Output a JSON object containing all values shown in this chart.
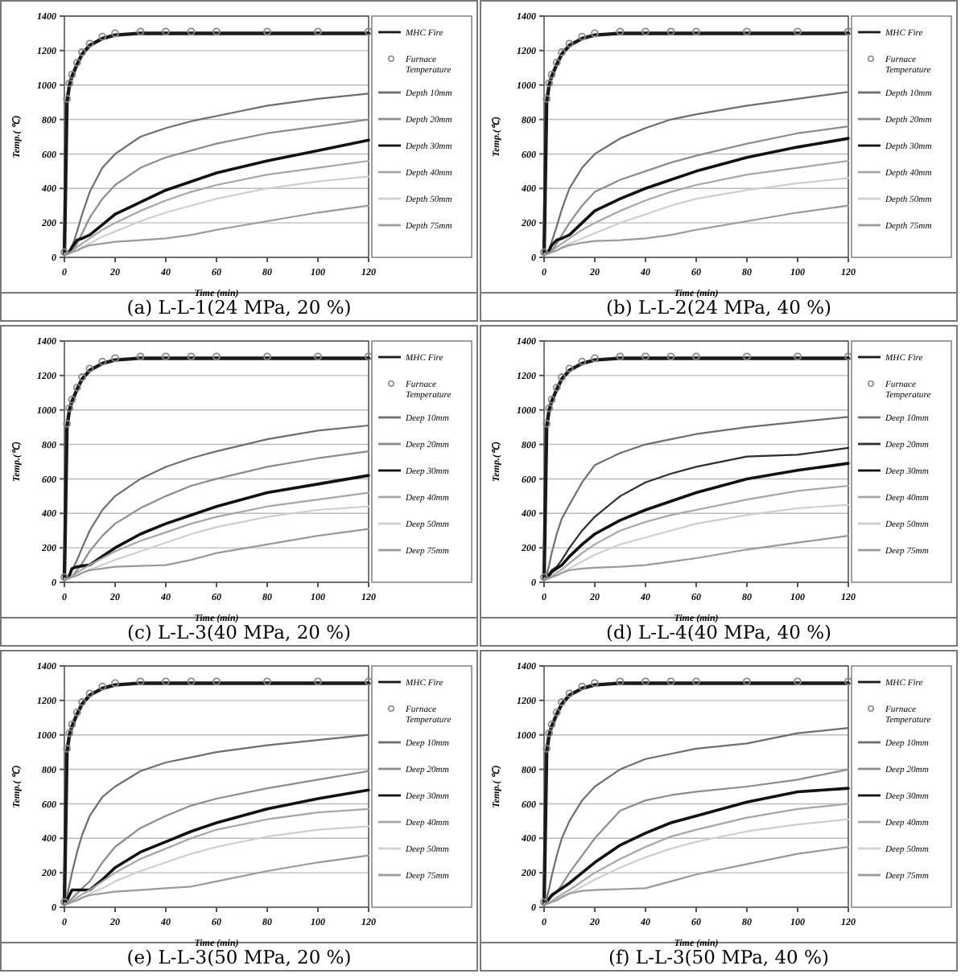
{
  "chart_data": [
    {
      "type": "line",
      "title": "(a) L-L-1(24 MPa, 20 %)",
      "xlabel": "Time (min)",
      "ylabel": "Temp.( ℃)",
      "x": [
        0,
        1,
        2,
        3,
        5,
        7,
        10,
        15,
        20,
        30,
        40,
        50,
        60,
        80,
        100,
        120
      ],
      "xlim": [
        0,
        120
      ],
      "xticks": [
        0,
        20,
        40,
        60,
        80,
        100,
        120
      ],
      "ylim": [
        0,
        1400
      ],
      "yticks": [
        0,
        200,
        400,
        600,
        800,
        1000,
        1200,
        1400
      ],
      "grid": "y",
      "legend": "right",
      "series": [
        {
          "name": "MHC Fire",
          "color": "#1a1a1a",
          "values": [
            20,
            900,
            1000,
            1050,
            1120,
            1180,
            1230,
            1270,
            1290,
            1300,
            1300,
            1300,
            1300,
            1300,
            1300,
            1300
          ]
        },
        {
          "name": "Furnace Temperature",
          "type": "scatter",
          "color": "#8a8a8a",
          "values": [
            30,
            920,
            1010,
            1060,
            1130,
            1190,
            1240,
            1280,
            1300,
            1310,
            1310,
            1310,
            1310,
            1310,
            1310,
            1310
          ]
        },
        {
          "name": "Depth 10mm",
          "color": "#6e6e6e",
          "values": [
            20,
            25,
            40,
            60,
            150,
            250,
            380,
            520,
            600,
            700,
            750,
            790,
            820,
            880,
            920,
            950
          ]
        },
        {
          "name": "Depth 20mm",
          "color": "#8c8c8c",
          "values": [
            20,
            22,
            25,
            35,
            80,
            140,
            230,
            340,
            420,
            520,
            580,
            620,
            660,
            720,
            760,
            800
          ]
        },
        {
          "name": "Depth 30mm",
          "color": "#111111",
          "values": [
            20,
            22,
            30,
            60,
            100,
            110,
            130,
            190,
            250,
            320,
            390,
            440,
            490,
            560,
            620,
            680
          ]
        },
        {
          "name": "Depth 40mm",
          "color": "#a6a6a6",
          "values": [
            20,
            22,
            25,
            35,
            60,
            80,
            110,
            160,
            200,
            270,
            330,
            380,
            420,
            480,
            520,
            560
          ]
        },
        {
          "name": "Depth 50mm",
          "color": "#cfcfcf",
          "values": [
            20,
            21,
            23,
            30,
            40,
            60,
            80,
            120,
            150,
            210,
            260,
            300,
            340,
            400,
            440,
            470
          ]
        },
        {
          "name": "Depth 75mm",
          "color": "#9a9a9a",
          "values": [
            20,
            21,
            23,
            30,
            40,
            55,
            70,
            80,
            90,
            100,
            110,
            130,
            160,
            210,
            260,
            300
          ]
        }
      ]
    },
    {
      "type": "line",
      "title": "(b) L-L-2(24 MPa, 40 %)",
      "xlabel": "Time (min)",
      "ylabel": "Temp.(℃)",
      "x": [
        0,
        1,
        2,
        3,
        5,
        7,
        10,
        15,
        20,
        30,
        40,
        50,
        60,
        80,
        100,
        120
      ],
      "xlim": [
        0,
        120
      ],
      "xticks": [
        0,
        20,
        40,
        60,
        80,
        100,
        120
      ],
      "ylim": [
        0,
        1400
      ],
      "yticks": [
        0,
        200,
        400,
        600,
        800,
        1000,
        1200,
        1400
      ],
      "grid": "y",
      "legend": "right",
      "series": [
        {
          "name": "MHC Fire",
          "color": "#1a1a1a",
          "values": [
            20,
            900,
            1000,
            1050,
            1120,
            1180,
            1230,
            1270,
            1290,
            1300,
            1300,
            1300,
            1300,
            1300,
            1300,
            1300
          ]
        },
        {
          "name": "Furnace Temperature",
          "type": "scatter",
          "color": "#8a8a8a",
          "values": [
            30,
            920,
            1010,
            1060,
            1130,
            1190,
            1240,
            1280,
            1300,
            1310,
            1310,
            1310,
            1310,
            1310,
            1310,
            1310
          ]
        },
        {
          "name": "Depth 10mm",
          "color": "#6e6e6e",
          "values": [
            20,
            30,
            50,
            90,
            180,
            280,
            400,
            520,
            600,
            690,
            750,
            800,
            830,
            880,
            920,
            960
          ]
        },
        {
          "name": "Depth 20mm",
          "color": "#8c8c8c",
          "values": [
            20,
            22,
            28,
            40,
            80,
            130,
            200,
            300,
            380,
            450,
            500,
            550,
            590,
            660,
            720,
            760
          ]
        },
        {
          "name": "Depth 30mm",
          "color": "#111111",
          "values": [
            20,
            25,
            40,
            70,
            100,
            110,
            130,
            200,
            270,
            340,
            400,
            450,
            500,
            580,
            640,
            690
          ]
        },
        {
          "name": "Depth 40mm",
          "color": "#a6a6a6",
          "values": [
            20,
            22,
            25,
            35,
            60,
            80,
            110,
            160,
            200,
            270,
            330,
            380,
            420,
            480,
            520,
            560
          ]
        },
        {
          "name": "Depth 50mm",
          "color": "#cfcfcf",
          "values": [
            20,
            21,
            23,
            30,
            40,
            60,
            80,
            110,
            140,
            200,
            250,
            300,
            340,
            390,
            430,
            460
          ]
        },
        {
          "name": "Depth 75mm",
          "color": "#9a9a9a",
          "values": [
            20,
            21,
            23,
            30,
            40,
            55,
            70,
            85,
            95,
            100,
            110,
            130,
            160,
            210,
            260,
            300
          ]
        }
      ]
    },
    {
      "type": "line",
      "title": "(c) L-L-3(40 MPa, 20 %)",
      "xlabel": "Time (min)",
      "ylabel": "Temp.(℃)",
      "x": [
        0,
        1,
        2,
        3,
        5,
        7,
        10,
        15,
        20,
        30,
        40,
        50,
        60,
        80,
        100,
        120
      ],
      "xlim": [
        0,
        120
      ],
      "xticks": [
        0,
        20,
        40,
        60,
        80,
        100,
        120
      ],
      "ylim": [
        0,
        1400
      ],
      "yticks": [
        0,
        200,
        400,
        600,
        800,
        1000,
        1200,
        1400
      ],
      "grid": "y",
      "legend": "right",
      "series": [
        {
          "name": "MHC Fire",
          "color": "#1a1a1a",
          "values": [
            20,
            900,
            1000,
            1050,
            1120,
            1180,
            1230,
            1270,
            1290,
            1300,
            1300,
            1300,
            1300,
            1300,
            1300,
            1300
          ]
        },
        {
          "name": "Furnace Temperature",
          "type": "scatter",
          "color": "#8a8a8a",
          "values": [
            30,
            920,
            1010,
            1060,
            1130,
            1190,
            1240,
            1280,
            1300,
            1310,
            1310,
            1310,
            1310,
            1310,
            1310,
            1310
          ]
        },
        {
          "name": "Deep 10mm",
          "color": "#6e6e6e",
          "values": [
            20,
            25,
            40,
            70,
            130,
            200,
            300,
            420,
            500,
            600,
            670,
            720,
            760,
            830,
            880,
            910
          ]
        },
        {
          "name": "Deep 20mm",
          "color": "#8c8c8c",
          "values": [
            20,
            22,
            25,
            35,
            70,
            110,
            180,
            270,
            340,
            430,
            500,
            560,
            600,
            670,
            720,
            760
          ]
        },
        {
          "name": "Deep 30mm",
          "color": "#111111",
          "values": [
            20,
            25,
            40,
            80,
            90,
            95,
            100,
            150,
            200,
            280,
            340,
            390,
            440,
            520,
            570,
            620
          ]
        },
        {
          "name": "Deep 40mm",
          "color": "#a6a6a6",
          "values": [
            20,
            22,
            25,
            35,
            55,
            75,
            100,
            140,
            180,
            240,
            290,
            340,
            380,
            440,
            480,
            520
          ]
        },
        {
          "name": "Deep 50mm",
          "color": "#cfcfcf",
          "values": [
            20,
            21,
            23,
            30,
            40,
            55,
            75,
            100,
            130,
            180,
            230,
            280,
            320,
            380,
            420,
            440
          ]
        },
        {
          "name": "Deep 75mm",
          "color": "#9a9a9a",
          "values": [
            20,
            21,
            23,
            30,
            40,
            55,
            70,
            80,
            90,
            95,
            100,
            130,
            170,
            220,
            270,
            310
          ]
        }
      ]
    },
    {
      "type": "line",
      "title": "(d) L-L-4(40 MPa, 40 %)",
      "xlabel": "Time (min)",
      "ylabel": "Temp.(℃)",
      "x": [
        0,
        1,
        2,
        3,
        5,
        7,
        10,
        15,
        20,
        30,
        40,
        50,
        60,
        80,
        100,
        120
      ],
      "xlim": [
        0,
        120
      ],
      "xticks": [
        0,
        20,
        40,
        60,
        80,
        100,
        120
      ],
      "ylim": [
        0,
        1400
      ],
      "yticks": [
        0,
        200,
        400,
        600,
        800,
        1000,
        1200,
        1400
      ],
      "grid": "y",
      "legend": "right",
      "series": [
        {
          "name": "MHC Fire",
          "color": "#1a1a1a",
          "values": [
            20,
            900,
            1000,
            1050,
            1120,
            1180,
            1230,
            1270,
            1290,
            1300,
            1300,
            1300,
            1300,
            1300,
            1300,
            1300
          ]
        },
        {
          "name": "Furnace Temperature",
          "type": "scatter",
          "color": "#8a8a8a",
          "values": [
            30,
            920,
            1010,
            1060,
            1130,
            1190,
            1240,
            1280,
            1300,
            1310,
            1310,
            1310,
            1310,
            1310,
            1310,
            1310
          ]
        },
        {
          "name": "Deep 10mm",
          "color": "#6e6e6e",
          "values": [
            20,
            40,
            100,
            170,
            280,
            370,
            450,
            580,
            680,
            750,
            800,
            830,
            860,
            900,
            930,
            960
          ]
        },
        {
          "name": "Deep 20mm",
          "color": "#2e2e2e",
          "values": [
            20,
            30,
            50,
            70,
            90,
            130,
            200,
            300,
            380,
            500,
            580,
            630,
            670,
            730,
            740,
            780
          ]
        },
        {
          "name": "Deep 30mm",
          "color": "#111111",
          "values": [
            20,
            25,
            40,
            60,
            80,
            100,
            150,
            220,
            280,
            360,
            420,
            470,
            520,
            600,
            650,
            690
          ]
        },
        {
          "name": "Deep 40mm",
          "color": "#a6a6a6",
          "values": [
            20,
            22,
            25,
            35,
            55,
            75,
            110,
            170,
            220,
            300,
            350,
            390,
            420,
            480,
            530,
            560
          ]
        },
        {
          "name": "Deep 50mm",
          "color": "#cfcfcf",
          "values": [
            20,
            21,
            23,
            30,
            40,
            55,
            80,
            120,
            160,
            220,
            260,
            300,
            340,
            390,
            430,
            450
          ]
        },
        {
          "name": "Deep 75mm",
          "color": "#9a9a9a",
          "values": [
            20,
            21,
            23,
            30,
            40,
            55,
            70,
            80,
            85,
            90,
            100,
            120,
            140,
            190,
            230,
            270
          ]
        }
      ]
    },
    {
      "type": "line",
      "title": "(e) L-L-3(50 MPa, 20 %)",
      "xlabel": "Time (min)",
      "ylabel": "Temp.( ℃)",
      "x": [
        0,
        1,
        2,
        3,
        5,
        7,
        10,
        15,
        20,
        30,
        40,
        50,
        60,
        80,
        100,
        120
      ],
      "xlim": [
        0,
        120
      ],
      "xticks": [
        0,
        20,
        40,
        60,
        80,
        100,
        120
      ],
      "ylim": [
        0,
        1400
      ],
      "yticks": [
        0,
        200,
        400,
        600,
        800,
        1000,
        1200,
        1400
      ],
      "grid": "y",
      "legend": "right",
      "series": [
        {
          "name": "MHC Fire",
          "color": "#1a1a1a",
          "values": [
            20,
            900,
            1000,
            1050,
            1120,
            1180,
            1230,
            1270,
            1290,
            1300,
            1300,
            1300,
            1300,
            1300,
            1300,
            1300
          ]
        },
        {
          "name": "Furnace Temperature",
          "type": "scatter",
          "color": "#8a8a8a",
          "values": [
            30,
            920,
            1010,
            1060,
            1130,
            1190,
            1240,
            1280,
            1300,
            1310,
            1310,
            1310,
            1310,
            1310,
            1310,
            1310
          ]
        },
        {
          "name": "Deep 10mm",
          "color": "#6e6e6e",
          "values": [
            20,
            60,
            130,
            200,
            320,
            420,
            530,
            640,
            700,
            790,
            840,
            870,
            900,
            940,
            970,
            1000
          ]
        },
        {
          "name": "Deep 20mm",
          "color": "#8c8c8c",
          "values": [
            20,
            25,
            35,
            50,
            80,
            110,
            150,
            260,
            350,
            460,
            530,
            590,
            630,
            690,
            740,
            790
          ]
        },
        {
          "name": "Deep 30mm",
          "color": "#111111",
          "values": [
            20,
            40,
            70,
            100,
            100,
            100,
            100,
            160,
            230,
            320,
            380,
            440,
            490,
            570,
            630,
            680
          ]
        },
        {
          "name": "Deep 40mm",
          "color": "#a6a6a6",
          "values": [
            20,
            22,
            25,
            35,
            55,
            75,
            100,
            150,
            200,
            280,
            340,
            400,
            450,
            510,
            550,
            570
          ]
        },
        {
          "name": "Deep 50mm",
          "color": "#cfcfcf",
          "values": [
            20,
            21,
            23,
            30,
            40,
            55,
            80,
            110,
            150,
            210,
            260,
            310,
            350,
            410,
            450,
            470
          ]
        },
        {
          "name": "Deep 75mm",
          "color": "#9a9a9a",
          "values": [
            20,
            21,
            23,
            30,
            40,
            55,
            70,
            80,
            90,
            100,
            110,
            120,
            150,
            210,
            260,
            300
          ]
        }
      ]
    },
    {
      "type": "line",
      "title": "(f) L-L-3(50 MPa, 40 %)",
      "xlabel": "Time (min)",
      "ylabel": "Temp.( ℃)",
      "x": [
        0,
        1,
        2,
        3,
        5,
        7,
        10,
        15,
        20,
        30,
        40,
        50,
        60,
        80,
        100,
        120
      ],
      "xlim": [
        0,
        120
      ],
      "xticks": [
        0,
        20,
        40,
        60,
        80,
        100,
        120
      ],
      "ylim": [
        0,
        1400
      ],
      "yticks": [
        0,
        200,
        400,
        600,
        800,
        1000,
        1200,
        1400
      ],
      "grid": "y",
      "legend": "right",
      "series": [
        {
          "name": "MHC Fire",
          "color": "#1a1a1a",
          "values": [
            20,
            900,
            1000,
            1050,
            1120,
            1180,
            1230,
            1270,
            1290,
            1300,
            1300,
            1300,
            1300,
            1300,
            1300,
            1300
          ]
        },
        {
          "name": "Furnace Temperature",
          "type": "scatter",
          "color": "#8a8a8a",
          "values": [
            30,
            920,
            1010,
            1060,
            1130,
            1190,
            1240,
            1280,
            1300,
            1310,
            1310,
            1310,
            1310,
            1310,
            1310,
            1310
          ]
        },
        {
          "name": "Deep 10mm",
          "color": "#6e6e6e",
          "values": [
            20,
            50,
            110,
            180,
            300,
            400,
            500,
            620,
            700,
            800,
            860,
            890,
            920,
            950,
            1010,
            1040
          ]
        },
        {
          "name": "Deep 20mm",
          "color": "#8c8c8c",
          "values": [
            20,
            30,
            45,
            60,
            90,
            130,
            200,
            300,
            400,
            560,
            620,
            650,
            670,
            700,
            740,
            800
          ]
        },
        {
          "name": "Deep 30mm",
          "color": "#111111",
          "values": [
            20,
            30,
            50,
            70,
            90,
            110,
            140,
            200,
            260,
            360,
            430,
            490,
            530,
            610,
            670,
            690
          ]
        },
        {
          "name": "Deep 40mm",
          "color": "#a6a6a6",
          "values": [
            20,
            22,
            25,
            35,
            55,
            75,
            100,
            150,
            200,
            280,
            350,
            410,
            450,
            520,
            570,
            600
          ]
        },
        {
          "name": "Deep 50mm",
          "color": "#cfcfcf",
          "values": [
            20,
            21,
            23,
            30,
            40,
            55,
            80,
            120,
            160,
            230,
            290,
            340,
            380,
            440,
            480,
            510
          ]
        },
        {
          "name": "Deep 75mm",
          "color": "#9a9a9a",
          "values": [
            20,
            21,
            23,
            30,
            40,
            60,
            80,
            95,
            100,
            105,
            110,
            150,
            190,
            250,
            310,
            350
          ]
        }
      ]
    }
  ]
}
